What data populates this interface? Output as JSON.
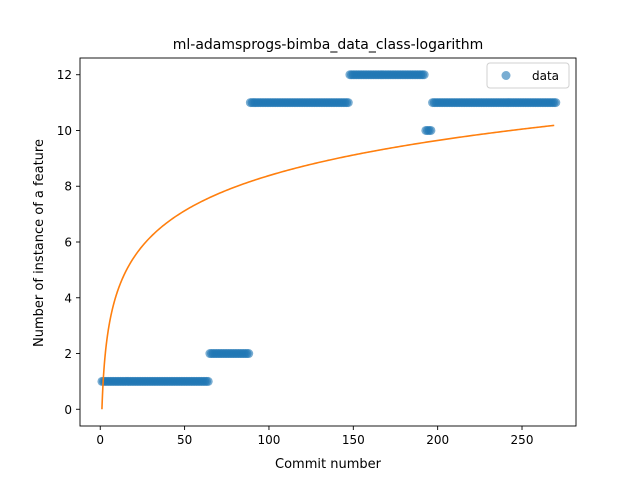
{
  "chart_data": {
    "type": "scatter",
    "title": "ml-adamsprogs-bimba_data_class-logarithm",
    "xlabel": "Commit number",
    "ylabel": "Number of instance of a feature",
    "xlim": [
      -12,
      282
    ],
    "ylim": [
      -0.6,
      12.6
    ],
    "xticks": [
      0,
      50,
      100,
      150,
      200,
      250
    ],
    "yticks": [
      0,
      2,
      4,
      6,
      8,
      10,
      12
    ],
    "legend": {
      "placement": "top-right",
      "entries": [
        "data"
      ]
    },
    "colors": {
      "data": "#1f77b4",
      "fit": "#ff7f0e"
    },
    "series": [
      {
        "name": "data",
        "kind": "scatter",
        "segments": [
          {
            "x_start": 1,
            "x_end": 64,
            "y": 1
          },
          {
            "x_start": 65,
            "x_end": 88,
            "y": 2
          },
          {
            "x_start": 89,
            "x_end": 147,
            "y": 11
          },
          {
            "x_start": 148,
            "x_end": 192,
            "y": 12
          },
          {
            "x_start": 193,
            "x_end": 196,
            "y": 10
          },
          {
            "x_start": 197,
            "x_end": 270,
            "y": 11
          }
        ]
      },
      {
        "kind": "line",
        "model": "logarithm",
        "x_range": [
          1,
          270
        ],
        "a": 1.82,
        "b": 0.6
      }
    ]
  }
}
